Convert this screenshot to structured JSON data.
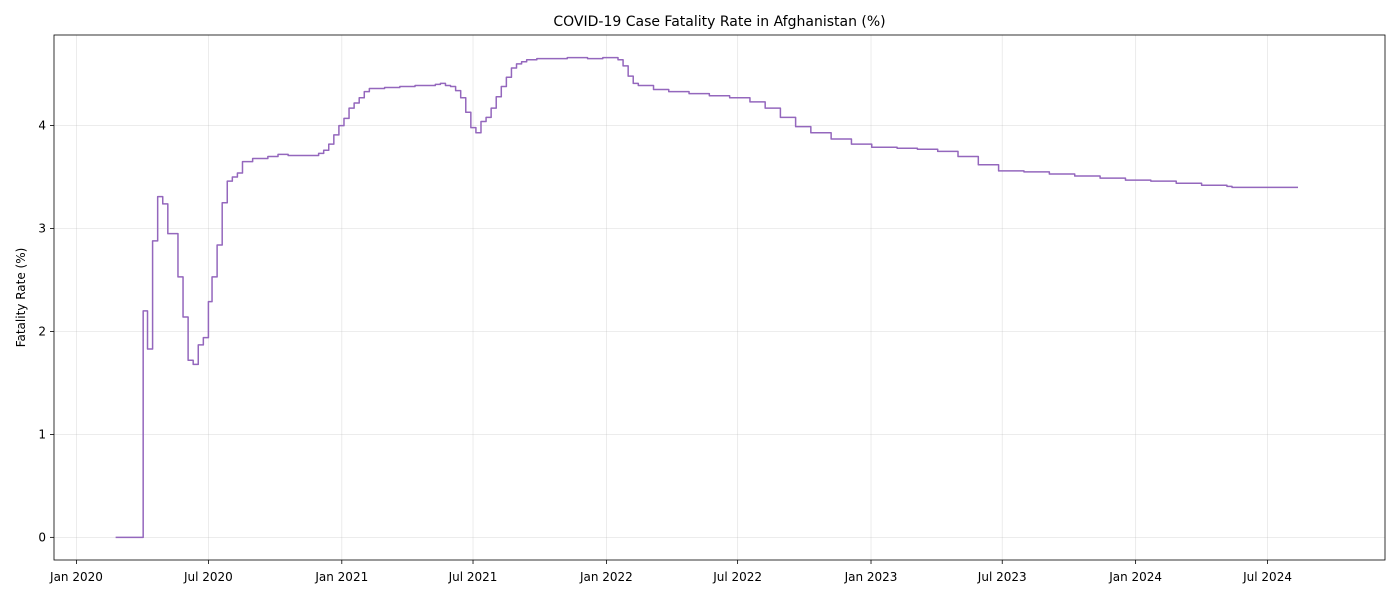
{
  "chart_data": {
    "type": "line",
    "title": "COVID-19 Case Fatality Rate in Afghanistan (%)",
    "xlabel": "",
    "ylabel": "Fatality Rate (%)",
    "x_type": "date",
    "xlim": [
      "2019-12-01",
      "2024-12-10"
    ],
    "ylim": [
      -0.22,
      4.88
    ],
    "x_ticks": [
      {
        "date": "2020-01-01",
        "label": "Jan 2020"
      },
      {
        "date": "2020-07-01",
        "label": "Jul 2020"
      },
      {
        "date": "2021-01-01",
        "label": "Jan 2021"
      },
      {
        "date": "2021-07-01",
        "label": "Jul 2021"
      },
      {
        "date": "2022-01-01",
        "label": "Jan 2022"
      },
      {
        "date": "2022-07-01",
        "label": "Jul 2022"
      },
      {
        "date": "2023-01-01",
        "label": "Jan 2023"
      },
      {
        "date": "2023-07-01",
        "label": "Jul 2023"
      },
      {
        "date": "2024-01-01",
        "label": "Jan 2024"
      },
      {
        "date": "2024-07-01",
        "label": "Jul 2024"
      }
    ],
    "y_ticks": [
      0,
      1,
      2,
      3,
      4
    ],
    "grid": true,
    "step": true,
    "colors": {
      "line": "#9467bd"
    },
    "series": [
      {
        "values": [
          [
            "2020-02-24",
            0.0
          ],
          [
            "2020-04-01",
            0.0
          ],
          [
            "2020-04-02",
            2.2
          ],
          [
            "2020-04-08",
            1.83
          ],
          [
            "2020-04-15",
            2.88
          ],
          [
            "2020-04-22",
            3.31
          ],
          [
            "2020-04-29",
            3.24
          ],
          [
            "2020-05-06",
            2.95
          ],
          [
            "2020-05-20",
            2.53
          ],
          [
            "2020-05-27",
            2.14
          ],
          [
            "2020-06-03",
            1.72
          ],
          [
            "2020-06-10",
            1.68
          ],
          [
            "2020-06-17",
            1.87
          ],
          [
            "2020-06-24",
            1.94
          ],
          [
            "2020-07-01",
            2.29
          ],
          [
            "2020-07-06",
            2.53
          ],
          [
            "2020-07-13",
            2.84
          ],
          [
            "2020-07-20",
            3.25
          ],
          [
            "2020-07-27",
            3.46
          ],
          [
            "2020-08-03",
            3.5
          ],
          [
            "2020-08-10",
            3.54
          ],
          [
            "2020-08-17",
            3.65
          ],
          [
            "2020-08-31",
            3.68
          ],
          [
            "2020-09-21",
            3.7
          ],
          [
            "2020-10-05",
            3.72
          ],
          [
            "2020-10-19",
            3.71
          ],
          [
            "2020-11-16",
            3.71
          ],
          [
            "2020-11-30",
            3.73
          ],
          [
            "2020-12-07",
            3.76
          ],
          [
            "2020-12-14",
            3.82
          ],
          [
            "2020-12-21",
            3.91
          ],
          [
            "2020-12-28",
            4.0
          ],
          [
            "2021-01-04",
            4.07
          ],
          [
            "2021-01-11",
            4.17
          ],
          [
            "2021-01-18",
            4.22
          ],
          [
            "2021-01-25",
            4.27
          ],
          [
            "2021-02-01",
            4.33
          ],
          [
            "2021-02-08",
            4.36
          ],
          [
            "2021-03-01",
            4.37
          ],
          [
            "2021-03-22",
            4.38
          ],
          [
            "2021-04-12",
            4.39
          ],
          [
            "2021-05-10",
            4.4
          ],
          [
            "2021-05-17",
            4.41
          ],
          [
            "2021-05-24",
            4.39
          ],
          [
            "2021-05-31",
            4.38
          ],
          [
            "2021-06-07",
            4.34
          ],
          [
            "2021-06-14",
            4.27
          ],
          [
            "2021-06-21",
            4.13
          ],
          [
            "2021-06-28",
            3.98
          ],
          [
            "2021-07-05",
            3.93
          ],
          [
            "2021-07-12",
            4.04
          ],
          [
            "2021-07-19",
            4.08
          ],
          [
            "2021-07-26",
            4.17
          ],
          [
            "2021-08-02",
            4.28
          ],
          [
            "2021-08-09",
            4.38
          ],
          [
            "2021-08-16",
            4.47
          ],
          [
            "2021-08-23",
            4.56
          ],
          [
            "2021-08-30",
            4.6
          ],
          [
            "2021-09-06",
            4.62
          ],
          [
            "2021-09-13",
            4.64
          ],
          [
            "2021-09-27",
            4.65
          ],
          [
            "2021-10-18",
            4.65
          ],
          [
            "2021-11-08",
            4.66
          ],
          [
            "2021-12-06",
            4.65
          ],
          [
            "2021-12-27",
            4.66
          ],
          [
            "2022-01-17",
            4.64
          ],
          [
            "2022-01-24",
            4.58
          ],
          [
            "2022-01-31",
            4.48
          ],
          [
            "2022-02-07",
            4.41
          ],
          [
            "2022-02-14",
            4.39
          ],
          [
            "2022-03-07",
            4.35
          ],
          [
            "2022-03-28",
            4.33
          ],
          [
            "2022-04-25",
            4.31
          ],
          [
            "2022-05-23",
            4.29
          ],
          [
            "2022-06-20",
            4.27
          ],
          [
            "2022-07-18",
            4.23
          ],
          [
            "2022-08-08",
            4.17
          ],
          [
            "2022-08-29",
            4.08
          ],
          [
            "2022-09-19",
            3.99
          ],
          [
            "2022-10-10",
            3.93
          ],
          [
            "2022-11-07",
            3.87
          ],
          [
            "2022-12-05",
            3.82
          ],
          [
            "2023-01-02",
            3.79
          ],
          [
            "2023-02-06",
            3.78
          ],
          [
            "2023-03-06",
            3.77
          ],
          [
            "2023-04-03",
            3.75
          ],
          [
            "2023-05-01",
            3.7
          ],
          [
            "2023-05-29",
            3.62
          ],
          [
            "2023-06-26",
            3.56
          ],
          [
            "2023-07-31",
            3.55
          ],
          [
            "2023-09-04",
            3.53
          ],
          [
            "2023-10-09",
            3.51
          ],
          [
            "2023-11-13",
            3.49
          ],
          [
            "2023-12-18",
            3.47
          ],
          [
            "2024-01-22",
            3.46
          ],
          [
            "2024-02-26",
            3.44
          ],
          [
            "2024-04-01",
            3.42
          ],
          [
            "2024-05-06",
            3.41
          ],
          [
            "2024-05-13",
            3.4
          ],
          [
            "2024-08-12",
            3.4
          ]
        ]
      }
    ]
  }
}
